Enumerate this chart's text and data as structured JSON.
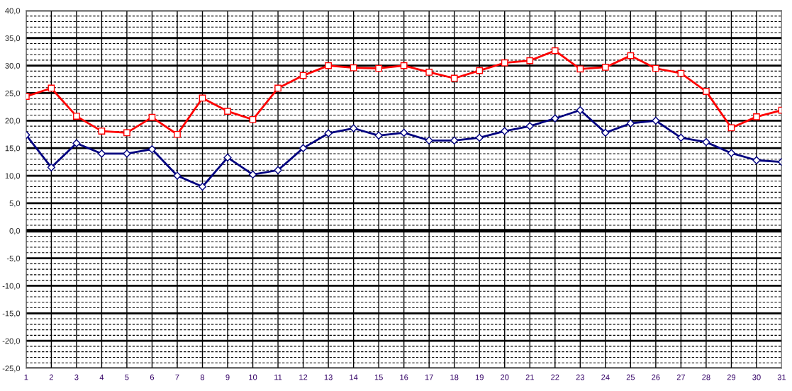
{
  "chart_data": {
    "type": "line",
    "categories": [
      "1",
      "2",
      "3",
      "4",
      "5",
      "6",
      "7",
      "8",
      "9",
      "10",
      "11",
      "12",
      "13",
      "14",
      "15",
      "16",
      "17",
      "18",
      "19",
      "20",
      "21",
      "22",
      "23",
      "24",
      "25",
      "26",
      "27",
      "28",
      "29",
      "30",
      "31"
    ],
    "series": [
      {
        "color": "#ff0000",
        "marker": "square",
        "values": [
          24.4,
          25.9,
          20.8,
          18.1,
          17.8,
          20.6,
          17.5,
          24.1,
          21.7,
          20.2,
          25.9,
          28.2,
          30.0,
          29.6,
          29.5,
          30.0,
          28.8,
          27.7,
          29.1,
          30.5,
          30.9,
          32.7,
          29.4,
          29.7,
          31.8,
          29.5,
          28.6,
          25.3,
          18.7,
          20.7,
          21.9
        ]
      },
      {
        "color": "#000080",
        "marker": "diamond",
        "values": [
          17.4,
          11.5,
          15.9,
          14.0,
          14.0,
          14.8,
          10.0,
          8.0,
          13.3,
          10.2,
          11.0,
          15.0,
          17.7,
          18.6,
          17.3,
          17.8,
          16.4,
          16.4,
          16.9,
          18.1,
          19.0,
          20.4,
          21.9,
          17.8,
          19.5,
          20.0,
          16.9,
          16.1,
          14.1,
          12.8,
          12.5
        ]
      }
    ],
    "ylim": [
      -25,
      40
    ],
    "yticks": [
      {
        "value": -25,
        "label": "-25,0"
      },
      {
        "value": -20,
        "label": "-20,0"
      },
      {
        "value": -15,
        "label": "-15,0"
      },
      {
        "value": -10,
        "label": "-10,0"
      },
      {
        "value": -5,
        "label": "-5,0"
      },
      {
        "value": 0,
        "label": "0,0"
      },
      {
        "value": 5,
        "label": "5,0"
      },
      {
        "value": 10,
        "label": "10,0"
      },
      {
        "value": 15,
        "label": "15,0"
      },
      {
        "value": 20,
        "label": "20,0"
      },
      {
        "value": 25,
        "label": "25,0"
      },
      {
        "value": 30,
        "label": "30,0"
      },
      {
        "value": 35,
        "label": "35,0"
      },
      {
        "value": 40,
        "label": "40,0"
      }
    ],
    "ref_lines": [
      {
        "axis": "y",
        "value": 0,
        "color": "#000000"
      }
    ],
    "grid": true,
    "line_style": "solid"
  }
}
